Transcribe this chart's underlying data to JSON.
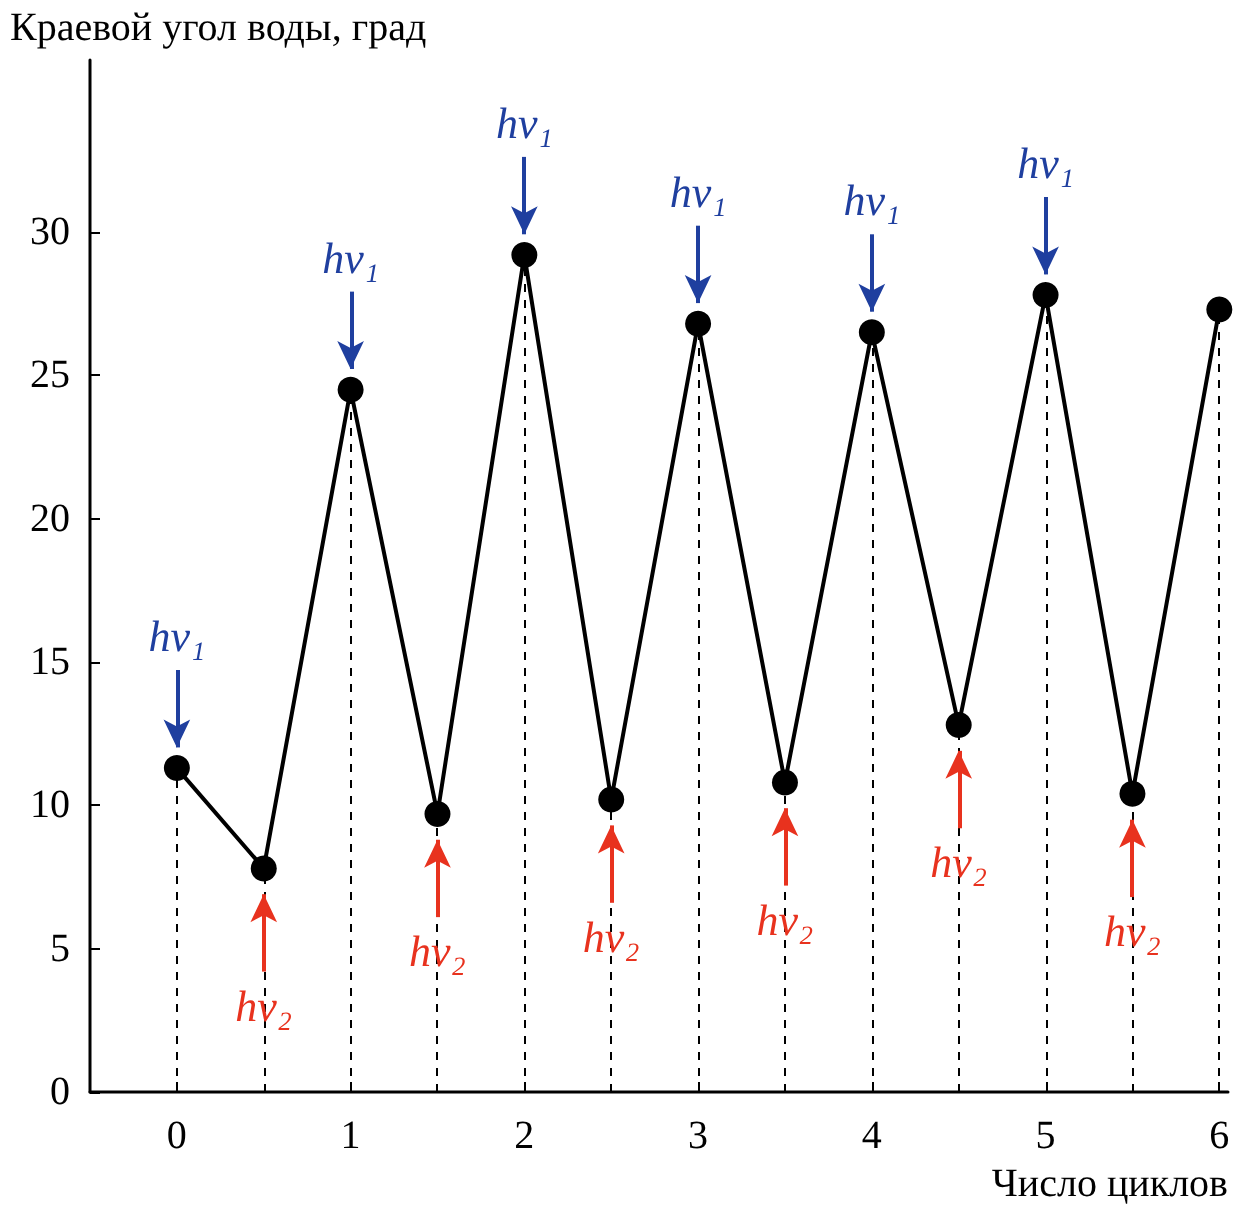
{
  "chart_data": {
    "type": "line",
    "xlabel": "Число циклов",
    "ylabel": "Краевой угол воды, град",
    "x": [
      0,
      0.5,
      1,
      1.5,
      2,
      2.5,
      3,
      3.5,
      4,
      4.5,
      5,
      5.5,
      6
    ],
    "series": [
      {
        "color": "#000000",
        "values": [
          11.3,
          7.8,
          24.5,
          9.7,
          29.2,
          10.2,
          26.8,
          10.8,
          26.5,
          12.8,
          27.8,
          10.4,
          27.3
        ]
      }
    ],
    "marker": "circle",
    "line_style": "solid",
    "grid": false,
    "ref_lines": [
      {
        "axis": "x",
        "value": 0,
        "color": "#000000",
        "line_style": "dashed"
      },
      {
        "axis": "x",
        "value": 0.5,
        "color": "#000000",
        "line_style": "dashed"
      },
      {
        "axis": "x",
        "value": 1,
        "color": "#000000",
        "line_style": "dashed"
      },
      {
        "axis": "x",
        "value": 1.5,
        "color": "#000000",
        "line_style": "dashed"
      },
      {
        "axis": "x",
        "value": 2,
        "color": "#000000",
        "line_style": "dashed"
      },
      {
        "axis": "x",
        "value": 2.5,
        "color": "#000000",
        "line_style": "dashed"
      },
      {
        "axis": "x",
        "value": 3,
        "color": "#000000",
        "line_style": "dashed"
      },
      {
        "axis": "x",
        "value": 3.5,
        "color": "#000000",
        "line_style": "dashed"
      },
      {
        "axis": "x",
        "value": 4,
        "color": "#000000",
        "line_style": "dashed"
      },
      {
        "axis": "x",
        "value": 4.5,
        "color": "#000000",
        "line_style": "dashed"
      },
      {
        "axis": "x",
        "value": 5,
        "color": "#000000",
        "line_style": "dashed"
      },
      {
        "axis": "x",
        "value": 5.5,
        "color": "#000000",
        "line_style": "dashed"
      },
      {
        "axis": "x",
        "value": 6,
        "color": "#000000",
        "line_style": "dashed"
      }
    ],
    "xlim": [
      -0.5,
      6.05
    ],
    "xticks": [
      0,
      1,
      2,
      3,
      4,
      5,
      6
    ],
    "ylim": [
      0,
      36
    ],
    "yticks": [
      0,
      5,
      10,
      15,
      20,
      25,
      30
    ],
    "annotations": [
      {
        "text": "hν₁",
        "x": 0,
        "y": 11.3
      },
      {
        "text": "hν₂",
        "x": 0.5,
        "y": 7.8
      },
      {
        "text": "hν₁",
        "x": 1,
        "y": 24.5
      },
      {
        "text": "hν₂",
        "x": 1.5,
        "y": 9.7
      },
      {
        "text": "hν₁",
        "x": 2,
        "y": 29.2
      },
      {
        "text": "hν₂",
        "x": 2.5,
        "y": 10.2
      },
      {
        "text": "hν₁",
        "x": 3,
        "y": 26.8
      },
      {
        "text": "hν₂",
        "x": 3.5,
        "y": 10.8
      },
      {
        "text": "hν₁",
        "x": 4,
        "y": 26.5
      },
      {
        "text": "hν₂",
        "x": 4.5,
        "y": 12.8
      },
      {
        "text": "hν₁",
        "x": 5,
        "y": 27.8
      },
      {
        "text": "hν₂",
        "x": 5.5,
        "y": 10.4
      }
    ]
  }
}
